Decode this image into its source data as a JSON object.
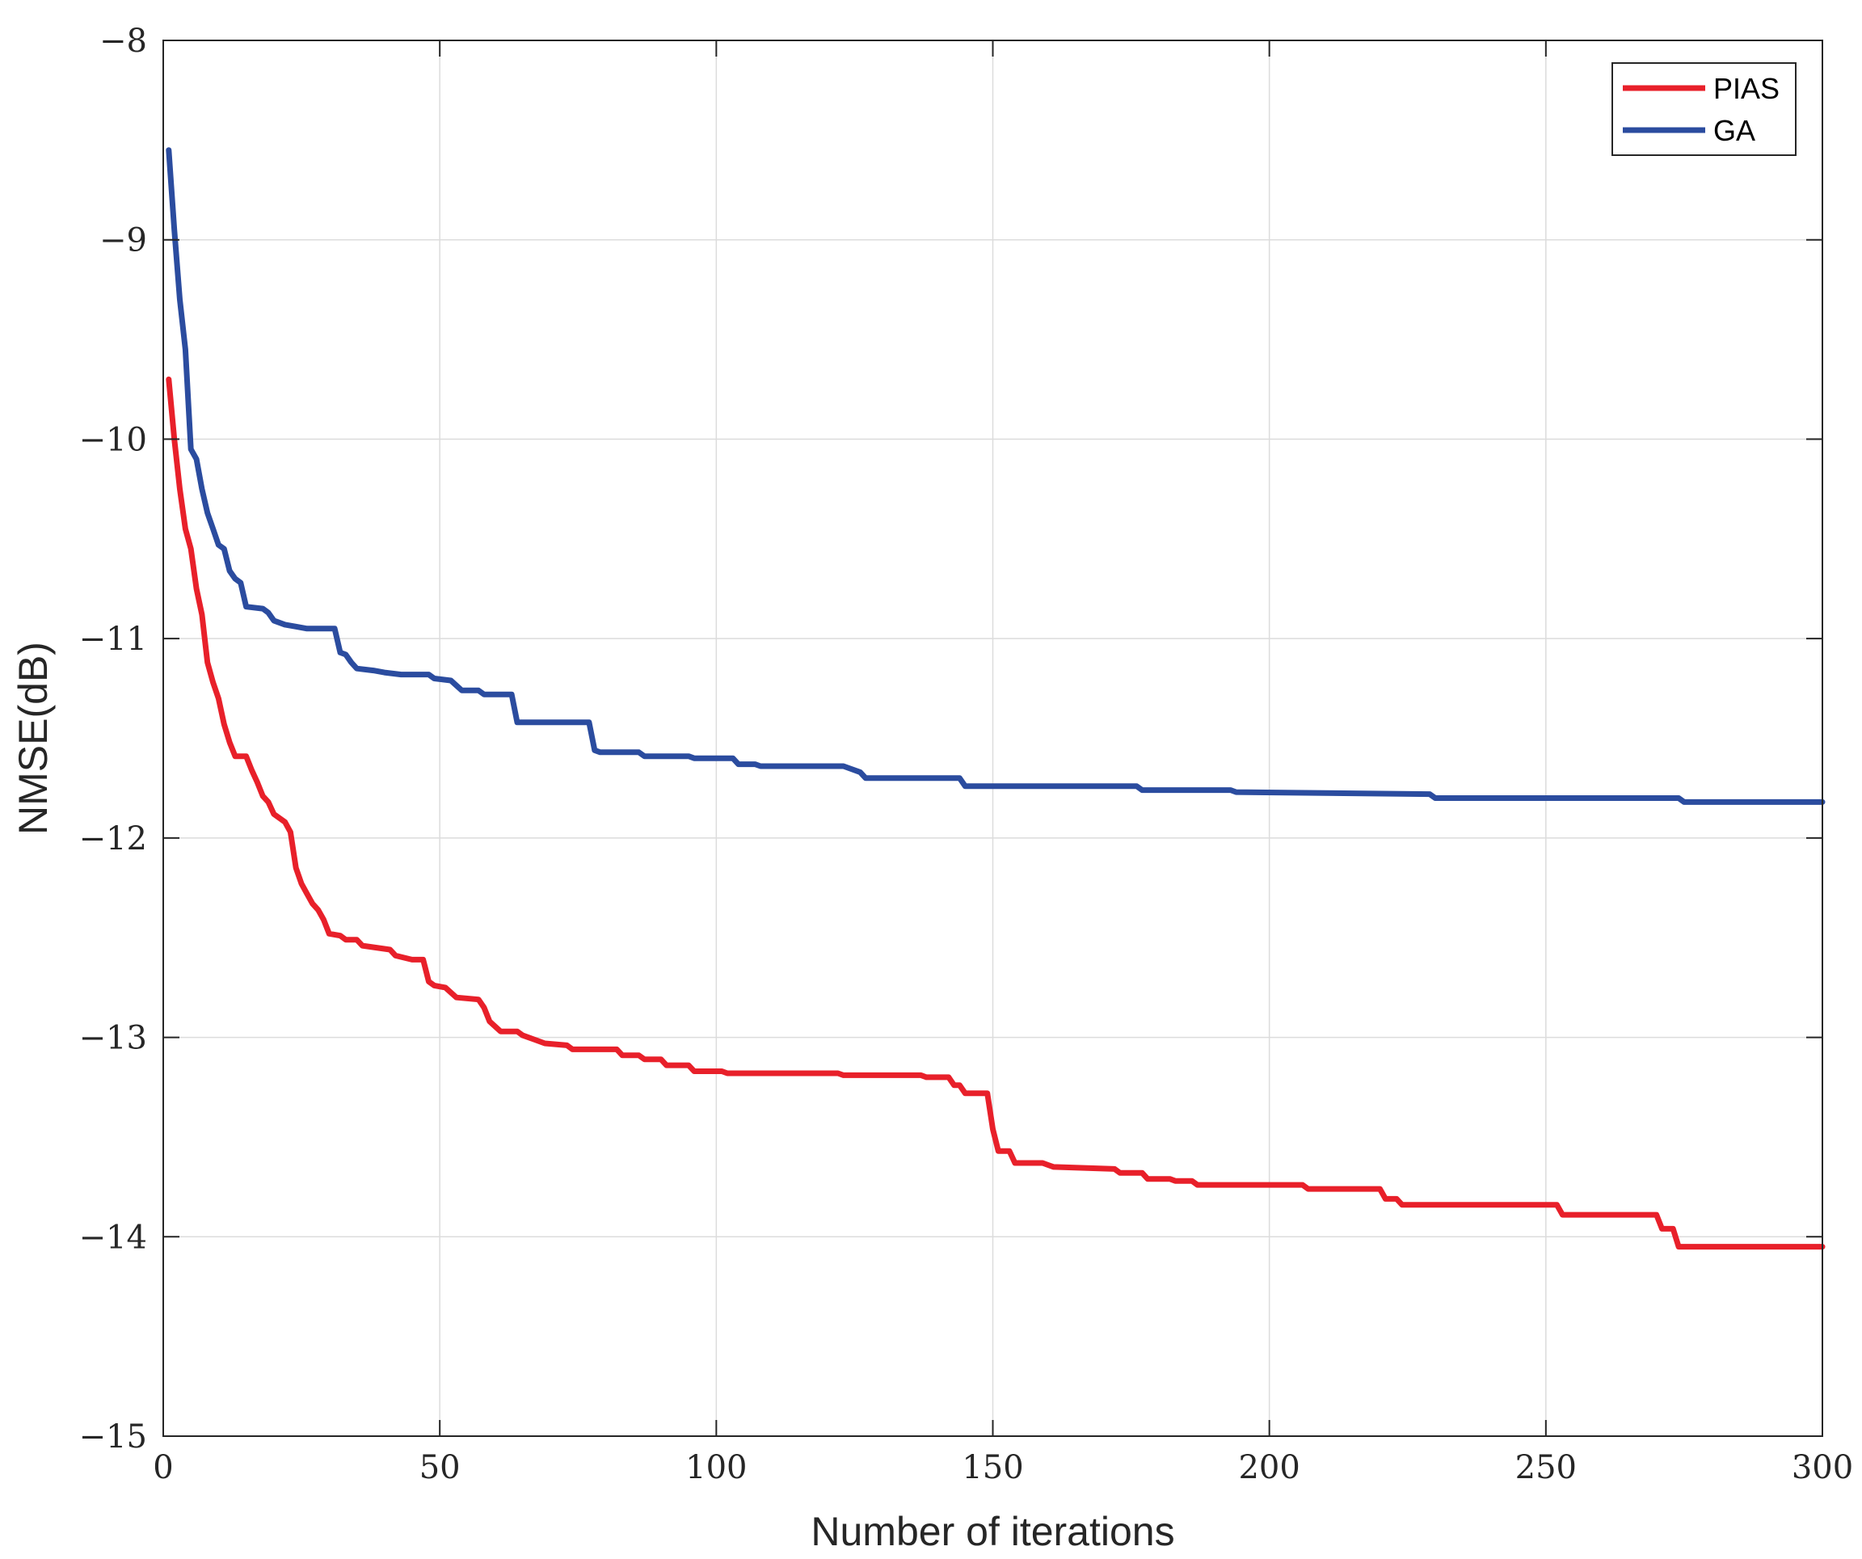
{
  "chart_data": {
    "type": "line",
    "title": "",
    "xlabel": "Number of iterations",
    "ylabel": "NMSE(dB)",
    "xlim": [
      0,
      300
    ],
    "ylim": [
      -15,
      -8
    ],
    "xticks": [
      0,
      50,
      100,
      150,
      200,
      250,
      300
    ],
    "yticks": [
      -15,
      -14,
      -13,
      -12,
      -11,
      -10,
      -9,
      -8
    ],
    "xtick_labels": [
      "0",
      "50",
      "100",
      "150",
      "200",
      "250",
      "300"
    ],
    "ytick_labels": [
      "−15",
      "−14",
      "−13",
      "−12",
      "−11",
      "−10",
      "−9",
      "−8"
    ],
    "grid": true,
    "legend_position": "top-right",
    "series": [
      {
        "name": "PIAS",
        "color": "#e8202a",
        "points": [
          [
            1,
            -9.7
          ],
          [
            2,
            -10.0
          ],
          [
            3,
            -10.25
          ],
          [
            4,
            -10.45
          ],
          [
            5,
            -10.55
          ],
          [
            6,
            -10.75
          ],
          [
            7,
            -10.88
          ],
          [
            8,
            -11.12
          ],
          [
            9,
            -11.22
          ],
          [
            10,
            -11.3
          ],
          [
            11,
            -11.43
          ],
          [
            12,
            -11.52
          ],
          [
            13,
            -11.59
          ],
          [
            15,
            -11.59
          ],
          [
            16,
            -11.66
          ],
          [
            17,
            -11.72
          ],
          [
            18,
            -11.79
          ],
          [
            19,
            -11.82
          ],
          [
            20,
            -11.88
          ],
          [
            22,
            -11.92
          ],
          [
            23,
            -11.97
          ],
          [
            24,
            -12.15
          ],
          [
            25,
            -12.23
          ],
          [
            26,
            -12.28
          ],
          [
            27,
            -12.33
          ],
          [
            28,
            -12.36
          ],
          [
            29,
            -12.41
          ],
          [
            30,
            -12.48
          ],
          [
            32,
            -12.49
          ],
          [
            33,
            -12.51
          ],
          [
            35,
            -12.51
          ],
          [
            36,
            -12.54
          ],
          [
            41,
            -12.56
          ],
          [
            42,
            -12.59
          ],
          [
            45,
            -12.61
          ],
          [
            47,
            -12.61
          ],
          [
            48,
            -12.72
          ],
          [
            49,
            -12.74
          ],
          [
            51,
            -12.75
          ],
          [
            53,
            -12.8
          ],
          [
            57,
            -12.81
          ],
          [
            58,
            -12.85
          ],
          [
            59,
            -12.92
          ],
          [
            61,
            -12.97
          ],
          [
            64,
            -12.97
          ],
          [
            65,
            -12.99
          ],
          [
            67,
            -13.01
          ],
          [
            69,
            -13.03
          ],
          [
            73,
            -13.04
          ],
          [
            74,
            -13.06
          ],
          [
            82,
            -13.06
          ],
          [
            83,
            -13.09
          ],
          [
            86,
            -13.09
          ],
          [
            87,
            -13.11
          ],
          [
            90,
            -13.11
          ],
          [
            91,
            -13.14
          ],
          [
            95,
            -13.14
          ],
          [
            96,
            -13.17
          ],
          [
            101,
            -13.17
          ],
          [
            102,
            -13.18
          ],
          [
            122,
            -13.18
          ],
          [
            123,
            -13.19
          ],
          [
            137,
            -13.19
          ],
          [
            138,
            -13.2
          ],
          [
            142,
            -13.2
          ],
          [
            143,
            -13.24
          ],
          [
            144,
            -13.24
          ],
          [
            145,
            -13.28
          ],
          [
            149,
            -13.28
          ],
          [
            150,
            -13.46
          ],
          [
            151,
            -13.57
          ],
          [
            153,
            -13.57
          ],
          [
            154,
            -13.63
          ],
          [
            159,
            -13.63
          ],
          [
            160,
            -13.64
          ],
          [
            161,
            -13.65
          ],
          [
            172,
            -13.66
          ],
          [
            173,
            -13.68
          ],
          [
            177,
            -13.68
          ],
          [
            178,
            -13.71
          ],
          [
            182,
            -13.71
          ],
          [
            183,
            -13.72
          ],
          [
            186,
            -13.72
          ],
          [
            187,
            -13.74
          ],
          [
            206,
            -13.74
          ],
          [
            207,
            -13.76
          ],
          [
            220,
            -13.76
          ],
          [
            221,
            -13.81
          ],
          [
            223,
            -13.81
          ],
          [
            224,
            -13.84
          ],
          [
            252,
            -13.84
          ],
          [
            253,
            -13.89
          ],
          [
            270,
            -13.89
          ],
          [
            271,
            -13.96
          ],
          [
            273,
            -13.96
          ],
          [
            274,
            -14.05
          ],
          [
            300,
            -14.05
          ]
        ]
      },
      {
        "name": "GA",
        "color": "#2b4c9f",
        "points": [
          [
            1,
            -8.55
          ],
          [
            2,
            -8.95
          ],
          [
            3,
            -9.3
          ],
          [
            4,
            -9.55
          ],
          [
            5,
            -10.05
          ],
          [
            6,
            -10.1
          ],
          [
            7,
            -10.25
          ],
          [
            8,
            -10.37
          ],
          [
            9,
            -10.45
          ],
          [
            10,
            -10.53
          ],
          [
            11,
            -10.55
          ],
          [
            12,
            -10.66
          ],
          [
            13,
            -10.7
          ],
          [
            14,
            -10.72
          ],
          [
            15,
            -10.84
          ],
          [
            18,
            -10.85
          ],
          [
            19,
            -10.87
          ],
          [
            20,
            -10.91
          ],
          [
            22,
            -10.93
          ],
          [
            24,
            -10.94
          ],
          [
            26,
            -10.95
          ],
          [
            31,
            -10.95
          ],
          [
            32,
            -11.07
          ],
          [
            33,
            -11.08
          ],
          [
            34,
            -11.12
          ],
          [
            35,
            -11.15
          ],
          [
            38,
            -11.16
          ],
          [
            40,
            -11.17
          ],
          [
            43,
            -11.18
          ],
          [
            48,
            -11.18
          ],
          [
            49,
            -11.2
          ],
          [
            52,
            -11.21
          ],
          [
            54,
            -11.26
          ],
          [
            57,
            -11.26
          ],
          [
            58,
            -11.28
          ],
          [
            63,
            -11.28
          ],
          [
            64,
            -11.42
          ],
          [
            77,
            -11.42
          ],
          [
            78,
            -11.56
          ],
          [
            79,
            -11.57
          ],
          [
            86,
            -11.57
          ],
          [
            87,
            -11.59
          ],
          [
            95,
            -11.59
          ],
          [
            96,
            -11.6
          ],
          [
            103,
            -11.6
          ],
          [
            104,
            -11.63
          ],
          [
            107,
            -11.63
          ],
          [
            108,
            -11.64
          ],
          [
            123,
            -11.64
          ],
          [
            124,
            -11.65
          ],
          [
            126,
            -11.67
          ],
          [
            127,
            -11.7
          ],
          [
            144,
            -11.7
          ],
          [
            145,
            -11.74
          ],
          [
            176,
            -11.74
          ],
          [
            177,
            -11.76
          ],
          [
            193,
            -11.76
          ],
          [
            194,
            -11.77
          ],
          [
            229,
            -11.78
          ],
          [
            230,
            -11.8
          ],
          [
            274,
            -11.8
          ],
          [
            275,
            -11.82
          ],
          [
            300,
            -11.82
          ]
        ]
      }
    ]
  }
}
